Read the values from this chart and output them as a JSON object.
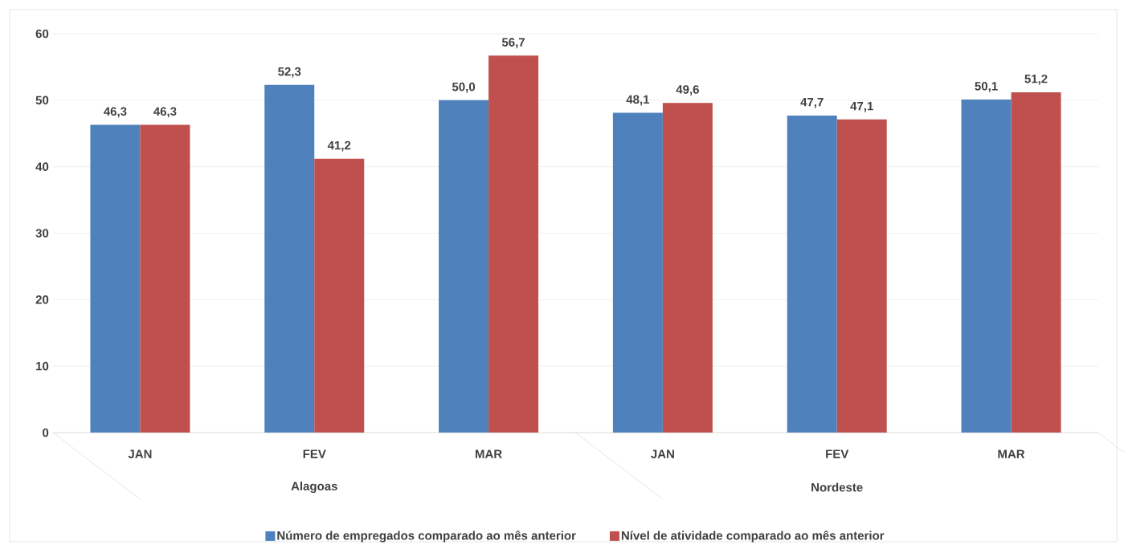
{
  "chart_data": {
    "type": "bar",
    "categories": [
      "JAN",
      "FEV",
      "MAR",
      "JAN",
      "FEV",
      "MAR"
    ],
    "series": [
      {
        "name": "Número de empregados comparado ao mês anterior",
        "color": "#4f81bd",
        "values": [
          46.3,
          52.3,
          50.0,
          48.1,
          47.7,
          50.1
        ],
        "value_labels": [
          "46,3",
          "52,3",
          "50,0",
          "48,1",
          "47,7",
          "50,1"
        ]
      },
      {
        "name": "Nível de atividade comparado ao mês anterior",
        "color": "#c0504d",
        "values": [
          46.3,
          41.2,
          56.7,
          49.6,
          47.1,
          51.2
        ],
        "value_labels": [
          "46,3",
          "41,2",
          "56,7",
          "49,6",
          "47,1",
          "51,2"
        ]
      }
    ],
    "annotations": [
      "Alagoas",
      "Nordeste"
    ],
    "ylim": [
      0,
      60
    ],
    "yticks": [
      0,
      10,
      20,
      30,
      40,
      50,
      60
    ],
    "grid": "y",
    "legend": "bottom"
  }
}
